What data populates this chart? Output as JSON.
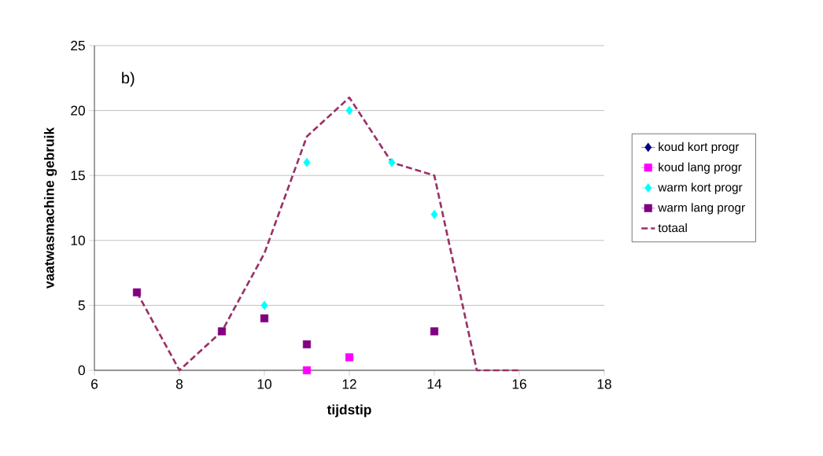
{
  "chart_data": {
    "type": "scatter",
    "xlabel": "tijdstip",
    "ylabel": "vaatwasmachine gebruik",
    "annotations": [
      "b)"
    ],
    "xlim": [
      6,
      18
    ],
    "xticks": [
      6,
      8,
      10,
      12,
      14,
      16,
      18
    ],
    "ylim": [
      0,
      25
    ],
    "yticks": [
      0,
      5,
      10,
      15,
      20,
      25
    ],
    "grid": "y",
    "legend": "right",
    "series": [
      {
        "name": "koud kort progr",
        "marker": "diamond",
        "color": "#000080"
      },
      {
        "name": "koud lang progr",
        "marker": "square",
        "color": "#ff00ff",
        "x": [
          11,
          12
        ],
        "values": [
          0,
          1
        ]
      },
      {
        "name": "warm kort progr",
        "marker": "diamond",
        "color": "#00ffff",
        "x": [
          10,
          11,
          12,
          13,
          14
        ],
        "values": [
          5,
          16,
          20,
          16,
          12
        ]
      },
      {
        "name": "warm lang progr",
        "marker": "square",
        "color": "#800080",
        "x": [
          7,
          9,
          10,
          11,
          14
        ],
        "values": [
          6,
          3,
          4,
          2,
          3
        ]
      },
      {
        "name": "totaal",
        "type": "line",
        "marker": "none",
        "line_style": "dashed",
        "color": "#993366",
        "x": [
          7,
          8,
          9,
          10,
          11,
          12,
          13,
          14,
          15,
          16
        ],
        "values": [
          6,
          0,
          3,
          9,
          18,
          21,
          16,
          15,
          0,
          0
        ]
      }
    ]
  }
}
